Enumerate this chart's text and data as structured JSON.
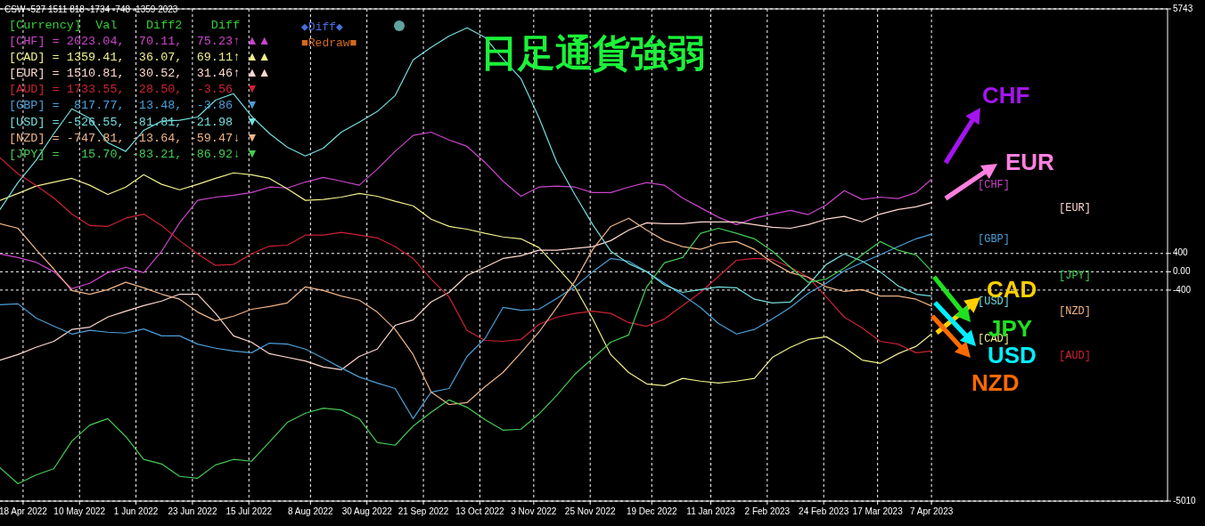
{
  "chart_data": {
    "type": "line",
    "title": "日足通貨強弱",
    "annotations": [
      "CSW -527 1511 818 -1734 -748 -1359 2023",
      "[Currency]  Val    Diff2    Diff",
      "[CHF] = 2023.04,  70.11,  75.23↑ ▲▲",
      "[CAD] = 1359.41,  36.07,  69.11↑ ▲▲",
      "[EUR] = 1510.81,  30.52,  31.46↑ ▲▲",
      "[AUD] = 1733.55,  28.50,  -3.56 ▼",
      "[GBP] =  817.77,  13.48,  -3.86 ▼",
      "[USD] = -526.55, -81.81, -21.98 ▼",
      "[NZD] = -747.81, -13.64, -59.47↓ ▼",
      "[JPY] =   15.70, -83.21, -86.92↓ ▼",
      "◆Diff◆",
      "■Redraw■",
      "CHF",
      "EUR",
      "CAD",
      "JPY",
      "USD",
      "NZD"
    ],
    "x": [
      "2022-04-09",
      "2022-04-16",
      "2022-04-23",
      "2022-04-30",
      "2022-05-07",
      "2022-05-14",
      "2022-05-21",
      "2022-05-28",
      "2022-06-04",
      "2022-06-11",
      "2022-06-18",
      "2022-06-25",
      "2022-07-02",
      "2022-07-09",
      "2022-07-16",
      "2022-07-23",
      "2022-07-30",
      "2022-08-06",
      "2022-08-13",
      "2022-08-20",
      "2022-08-27",
      "2022-09-03",
      "2022-09-10",
      "2022-09-17",
      "2022-09-24",
      "2022-10-01",
      "2022-10-08",
      "2022-10-15",
      "2022-10-22",
      "2022-10-29",
      "2022-11-05",
      "2022-11-12",
      "2022-11-19",
      "2022-11-26",
      "2022-12-03",
      "2022-12-10",
      "2022-12-17",
      "2022-12-24",
      "2022-12-31",
      "2023-01-07",
      "2023-01-14",
      "2023-01-21",
      "2023-01-28",
      "2023-02-04",
      "2023-02-11",
      "2023-02-18",
      "2023-02-25",
      "2023-03-04",
      "2023-03-11",
      "2023-03-18",
      "2023-03-25",
      "2023-04-01",
      "2023-04-07"
    ],
    "xlim": [
      "2022-04-09",
      "2023-07-08"
    ],
    "xticks": [
      {
        "value": "2022-04-18",
        "label": "18 Apr 2022"
      },
      {
        "value": "2022-05-10",
        "label": "10 May 2022"
      },
      {
        "value": "2022-06-01",
        "label": "1 Jun 2022"
      },
      {
        "value": "2022-06-23",
        "label": "23 Jun 2022"
      },
      {
        "value": "2022-07-15",
        "label": "15 Jul 2022"
      },
      {
        "value": "2022-08-08",
        "label": "8 Aug 2022"
      },
      {
        "value": "2022-08-30",
        "label": "30 Aug 2022"
      },
      {
        "value": "2022-09-21",
        "label": "21 Sep 2022"
      },
      {
        "value": "2022-10-13",
        "label": "13 Oct 2022"
      },
      {
        "value": "2022-11-03",
        "label": "3 Nov 2022"
      },
      {
        "value": "2022-11-25",
        "label": "25 Nov 2022"
      },
      {
        "value": "2022-12-19",
        "label": "19 Dec 2022"
      },
      {
        "value": "2023-01-11",
        "label": "11 Jan 2023"
      },
      {
        "value": "2023-02-02",
        "label": "2 Feb 2023"
      },
      {
        "value": "2023-02-24",
        "label": "24 Feb 2023"
      },
      {
        "value": "2023-03-17",
        "label": "17 Mar 2023"
      },
      {
        "value": "2023-04-07",
        "label": "7 Apr 2023"
      }
    ],
    "ylim": [
      -5010,
      5743
    ],
    "yticks": [
      5743,
      400,
      {
        "value": 0,
        "label": "0.00"
      },
      -400,
      -5010
    ],
    "grid": true,
    "series": [
      {
        "name": "[CHF]",
        "color": "#cc44cc",
        "values": [
          390,
          310,
          210,
          0,
          -370,
          -250,
          -20,
          100,
          -20,
          450,
          1070,
          1560,
          1630,
          1670,
          1730,
          1850,
          1830,
          1960,
          2060,
          1980,
          1890,
          2240,
          2630,
          2980,
          3050,
          2880,
          2740,
          2390,
          1980,
          1650,
          1850,
          1870,
          1850,
          1730,
          1730,
          1850,
          1950,
          1890,
          1610,
          1400,
          1190,
          1030,
          1170,
          1260,
          1340,
          1250,
          1460,
          1770,
          1580,
          1630,
          1600,
          1730,
          2020
        ]
      },
      {
        "name": "[CAD]",
        "color": "#f0f08a",
        "values": [
          1560,
          1710,
          1870,
          1960,
          2040,
          1890,
          1690,
          1850,
          2120,
          1910,
          1790,
          1910,
          2040,
          2160,
          2120,
          2040,
          1810,
          1560,
          1580,
          1630,
          1710,
          1650,
          1540,
          1440,
          1150,
          990,
          930,
          840,
          760,
          720,
          530,
          100,
          -330,
          -1030,
          -1810,
          -2200,
          -2450,
          -2490,
          -2330,
          -2390,
          -2430,
          -2390,
          -2330,
          -1870,
          -1650,
          -1480,
          -1420,
          -1650,
          -1930,
          -2000,
          -1790,
          -1630,
          -1360
        ]
      },
      {
        "name": "[EUR]",
        "color": "#ffd8d0",
        "values": [
          -1930,
          -1810,
          -1650,
          -1520,
          -1260,
          -1210,
          -990,
          -860,
          -740,
          -640,
          -490,
          -490,
          -910,
          -1400,
          -1540,
          -1790,
          -1870,
          -1950,
          -2080,
          -2140,
          -1850,
          -1690,
          -1170,
          -1050,
          -660,
          -450,
          -80,
          100,
          290,
          350,
          470,
          470,
          510,
          550,
          680,
          910,
          1070,
          1050,
          1050,
          1090,
          1090,
          1090,
          1030,
          970,
          950,
          1030,
          1150,
          1210,
          1090,
          1260,
          1360,
          1420,
          1510
        ]
      },
      {
        "name": "[AUD]",
        "color": "#cc2233",
        "values": [
          2490,
          2140,
          1890,
          1610,
          1260,
          1010,
          990,
          1170,
          1260,
          1010,
          680,
          390,
          140,
          160,
          390,
          560,
          580,
          800,
          800,
          860,
          800,
          740,
          550,
          290,
          -160,
          -550,
          -1280,
          -1500,
          -1520,
          -1480,
          -1150,
          -990,
          -910,
          -860,
          -910,
          -1110,
          -1190,
          -1030,
          -740,
          -450,
          -100,
          250,
          290,
          270,
          100,
          -120,
          -550,
          -990,
          -1230,
          -1520,
          -1580,
          -1770,
          -1730
        ]
      },
      {
        "name": "[GBP]",
        "color": "#4a9fd8",
        "values": [
          -720,
          -700,
          -1010,
          -1190,
          -1360,
          -1280,
          -1320,
          -1340,
          -1250,
          -1400,
          -1400,
          -1580,
          -1670,
          -1730,
          -1770,
          -1560,
          -1580,
          -1690,
          -1890,
          -2100,
          -2300,
          -2430,
          -2550,
          -3210,
          -2630,
          -2550,
          -1850,
          -1460,
          -780,
          -840,
          -820,
          -580,
          -330,
          0,
          290,
          230,
          0,
          -250,
          -510,
          -780,
          -1130,
          -1360,
          -1260,
          -1030,
          -780,
          -470,
          -250,
          20,
          200,
          370,
          550,
          720,
          820
        ]
      },
      {
        "name": "[USD]",
        "color": "#74dede",
        "values": [
          1360,
          1950,
          2430,
          3020,
          3560,
          3350,
          2820,
          2630,
          3090,
          3290,
          3310,
          3380,
          3750,
          3890,
          3400,
          3020,
          2720,
          2530,
          2700,
          3050,
          3270,
          3500,
          3850,
          4630,
          4900,
          5150,
          5330,
          5120,
          4650,
          4220,
          3370,
          2390,
          1690,
          1030,
          450,
          180,
          0,
          -290,
          -450,
          -390,
          -330,
          -350,
          -600,
          -680,
          -660,
          -290,
          160,
          390,
          230,
          0,
          -310,
          -490,
          -530
        ]
      },
      {
        "name": "[NZD]",
        "color": "#f0b486",
        "values": [
          1050,
          950,
          490,
          60,
          -410,
          -490,
          -390,
          -230,
          -350,
          -490,
          -600,
          -880,
          -1070,
          -970,
          -820,
          -760,
          -680,
          -330,
          -410,
          -530,
          -620,
          -880,
          -1260,
          -1810,
          -2630,
          -2900,
          -2860,
          -2510,
          -2200,
          -1770,
          -1320,
          -780,
          -210,
          490,
          990,
          1170,
          910,
          680,
          550,
          490,
          620,
          660,
          490,
          200,
          -20,
          -120,
          -330,
          -430,
          -390,
          -530,
          -530,
          -600,
          -750
        ]
      },
      {
        "name": "[JPY]",
        "color": "#44cc55",
        "values": [
          -4280,
          -4630,
          -4440,
          -4300,
          -3700,
          -3350,
          -3210,
          -3600,
          -4100,
          -4200,
          -4470,
          -4510,
          -4220,
          -4100,
          -4140,
          -3720,
          -3290,
          -3090,
          -2980,
          -3020,
          -3210,
          -3730,
          -3790,
          -3370,
          -3070,
          -2800,
          -2960,
          -3230,
          -3460,
          -3440,
          -3110,
          -2700,
          -2240,
          -1890,
          -1540,
          -1380,
          -330,
          200,
          310,
          840,
          950,
          840,
          720,
          450,
          100,
          -230,
          -160,
          80,
          370,
          660,
          470,
          370,
          20
        ]
      }
    ]
  }
}
